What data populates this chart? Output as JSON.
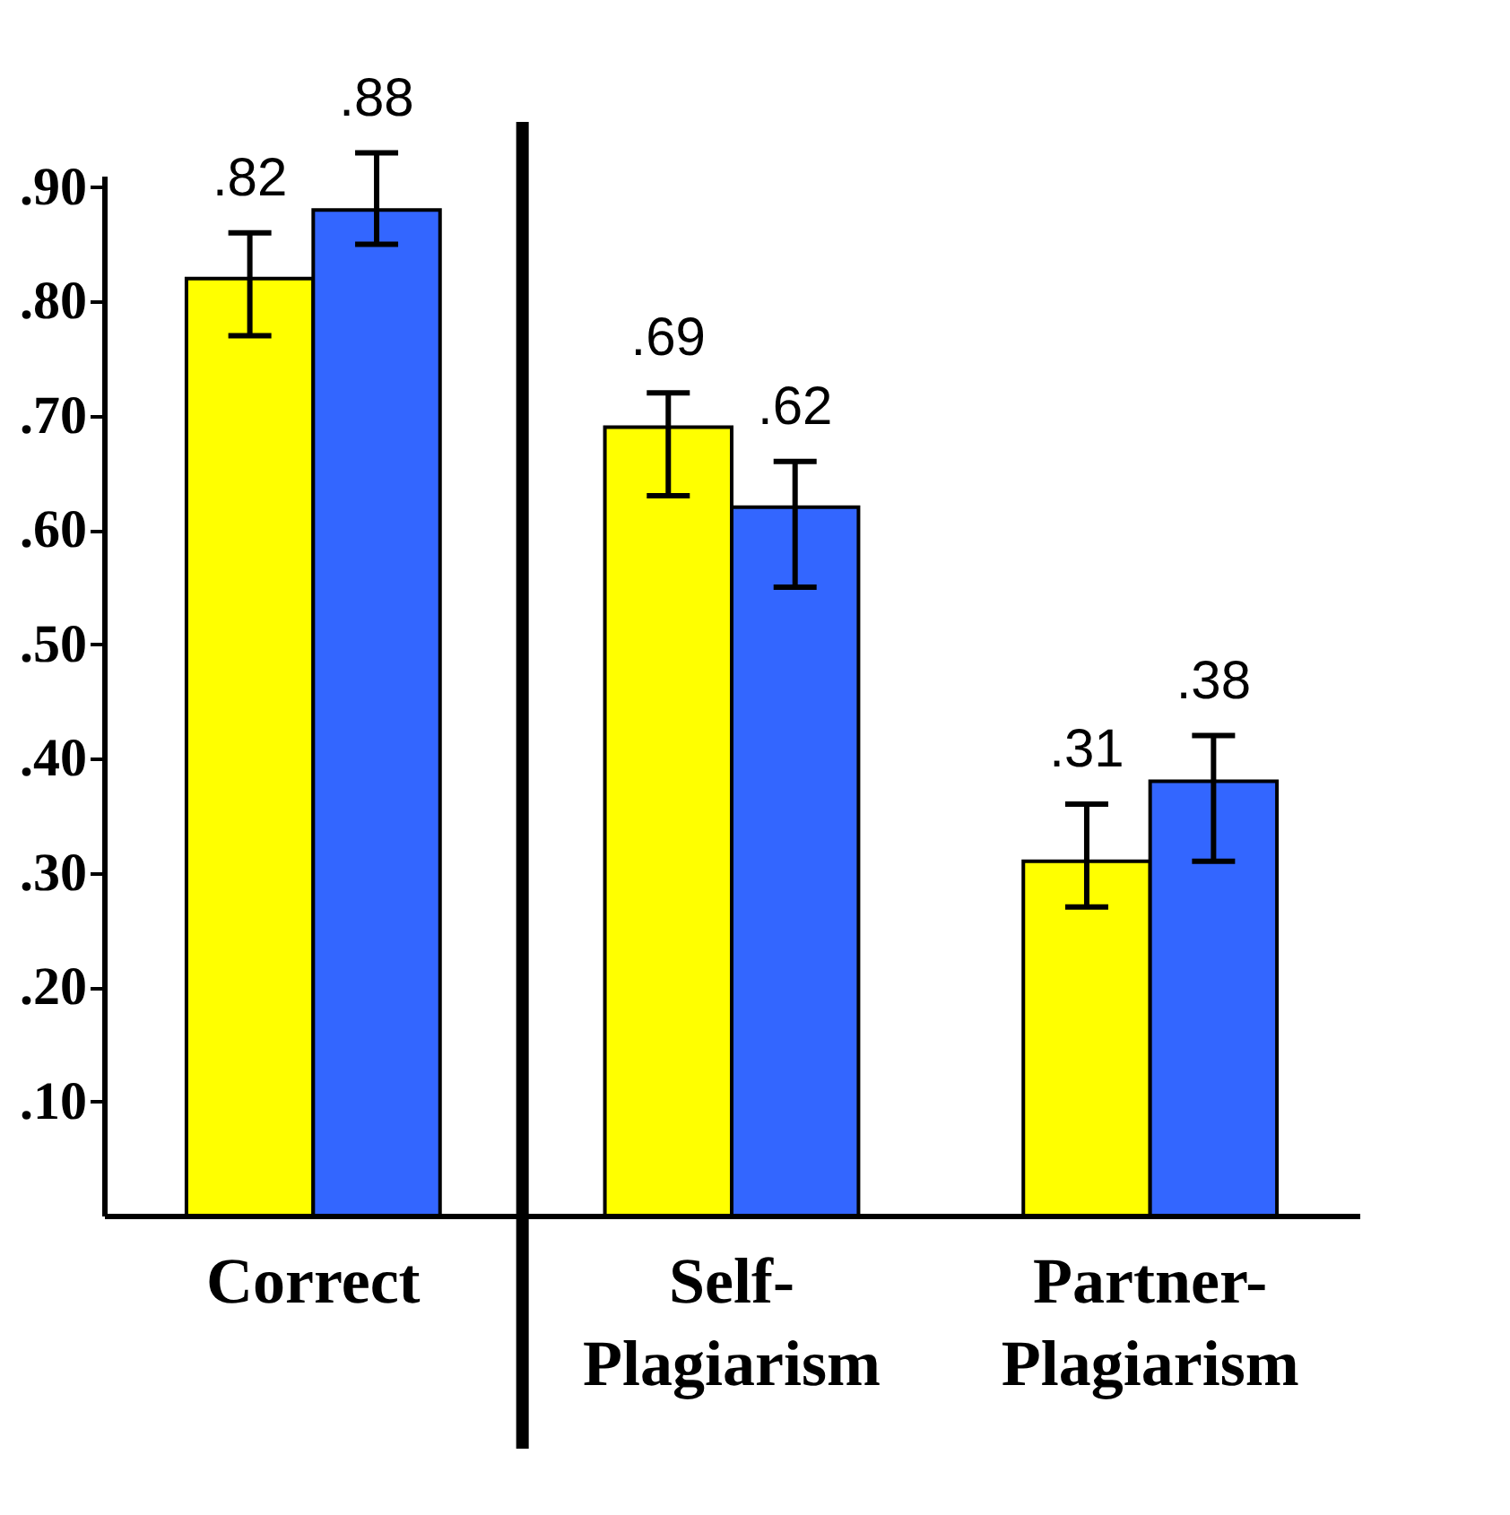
{
  "chart_data": {
    "type": "bar",
    "categories": [
      "Correct",
      "Self-Plagiarism",
      "Partner-Plagiarism"
    ],
    "series": [
      {
        "color": "#ffff00",
        "values": [
          0.82,
          0.69,
          0.31
        ],
        "value_labels": [
          ".82",
          ".69",
          ".31"
        ],
        "errors": [
          [
            0.77,
            0.86
          ],
          [
            0.63,
            0.72
          ],
          [
            0.27,
            0.36
          ]
        ]
      },
      {
        "color": "#3366ff",
        "values": [
          0.88,
          0.62,
          0.38
        ],
        "value_labels": [
          ".88",
          ".62",
          ".38"
        ],
        "errors": [
          [
            0.85,
            0.93
          ],
          [
            0.55,
            0.66
          ],
          [
            0.31,
            0.42
          ]
        ]
      }
    ],
    "ylim": [
      0,
      0.91
    ],
    "yticks": [
      {
        "value": 0.1,
        "label": ".10"
      },
      {
        "value": 0.2,
        "label": ".20"
      },
      {
        "value": 0.3,
        "label": ".30"
      },
      {
        "value": 0.4,
        "label": ".40"
      },
      {
        "value": 0.5,
        "label": ".50"
      },
      {
        "value": 0.6,
        "label": ".60"
      },
      {
        "value": 0.7,
        "label": ".70"
      },
      {
        "value": 0.8,
        "label": ".80"
      },
      {
        "value": 0.9,
        "label": ".90"
      }
    ],
    "grid": false,
    "legend": false
  }
}
